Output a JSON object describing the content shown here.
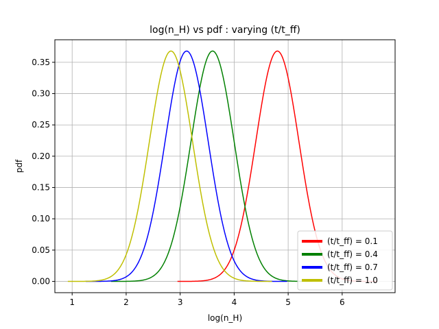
{
  "chart_data": {
    "type": "line",
    "title": "log(n_H) vs pdf : varying (t/t_ff)",
    "xlabel": "log(n_H)",
    "ylabel": "pdf",
    "xlim": [
      0.68,
      6.98
    ],
    "ylim": [
      -0.018,
      0.386
    ],
    "xticks": [
      1,
      2,
      3,
      4,
      5,
      6
    ],
    "yticks": [
      0.0,
      0.05,
      0.1,
      0.15,
      0.2,
      0.25,
      0.3,
      0.35
    ],
    "grid": true,
    "legend_position": "lower-right",
    "series": [
      {
        "name": "(t/t_ff) = 0.1",
        "color": "#ff0000",
        "peak_x": 4.8,
        "peak_y": 0.368,
        "sigma": 0.4,
        "x_range": [
          2.95,
          6.65
        ]
      },
      {
        "name": "(t/t_ff) = 0.4",
        "color": "#008000",
        "peak_x": 3.6,
        "peak_y": 0.368,
        "sigma": 0.4,
        "x_range": [
          1.72,
          5.45
        ]
      },
      {
        "name": "(t/t_ff) = 0.7",
        "color": "#0000ff",
        "peak_x": 3.12,
        "peak_y": 0.368,
        "sigma": 0.4,
        "x_range": [
          1.25,
          4.98
        ]
      },
      {
        "name": "(t/t_ff) = 1.0",
        "color": "#bfbf00",
        "peak_x": 2.83,
        "peak_y": 0.368,
        "sigma": 0.4,
        "x_range": [
          0.92,
          4.7
        ]
      }
    ]
  }
}
